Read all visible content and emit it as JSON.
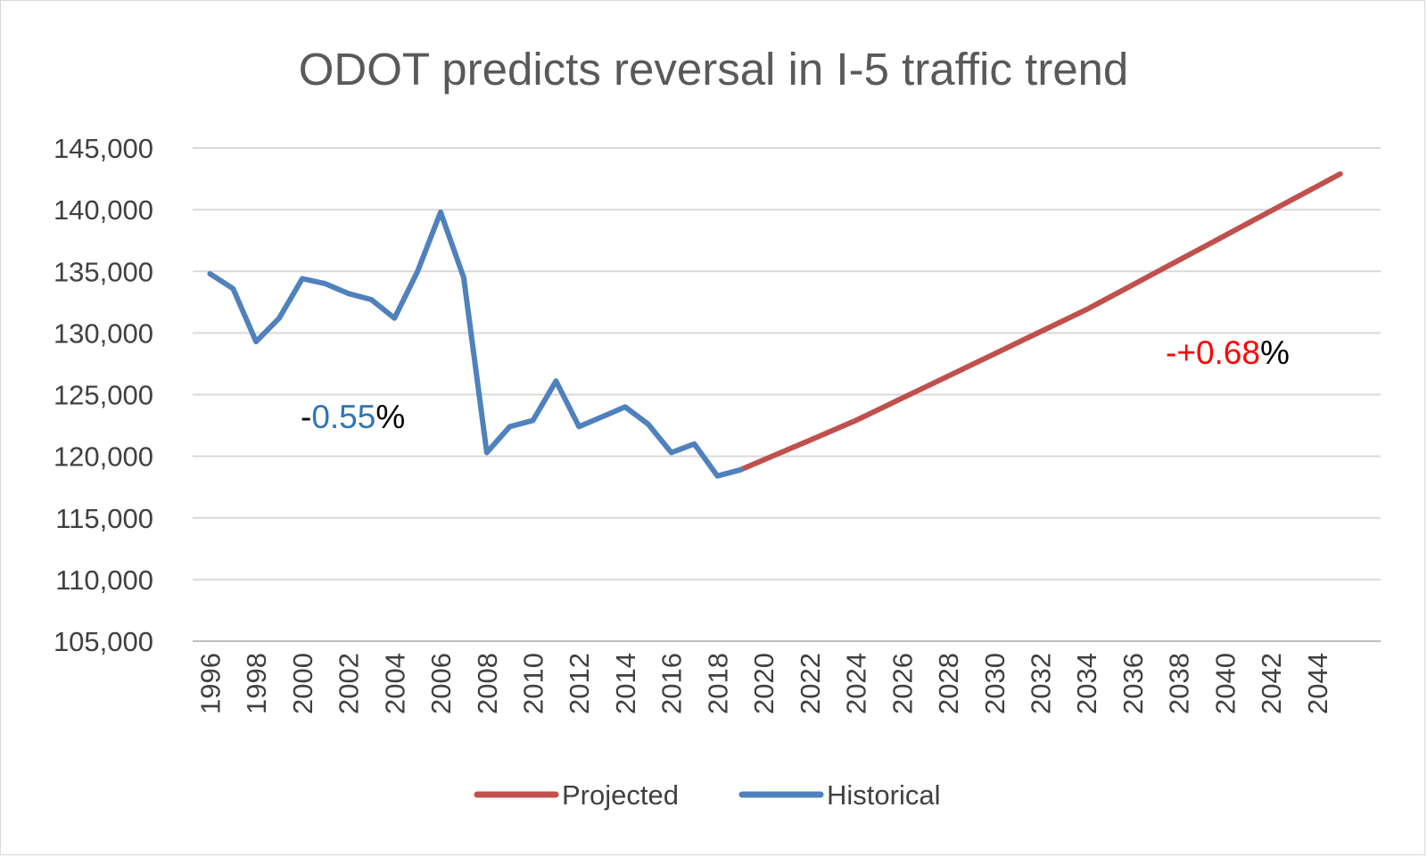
{
  "chart_data": {
    "type": "line",
    "title": "ODOT predicts  reversal in I-5 traffic trend",
    "xlabel": "",
    "ylabel": "",
    "xlim": [
      1996,
      2045
    ],
    "ylim": [
      105000,
      145000
    ],
    "y_ticks": [
      "105,000",
      "110,000",
      "115,000",
      "120,000",
      "125,000",
      "130,000",
      "135,000",
      "140,000",
      "145,000"
    ],
    "x_ticks": [
      "1996",
      "1998",
      "2000",
      "2002",
      "2004",
      "2006",
      "2008",
      "2010",
      "2012",
      "2014",
      "2016",
      "2018",
      "2020",
      "2022",
      "2024",
      "2026",
      "2028",
      "2030",
      "2032",
      "2034",
      "2036",
      "2038",
      "2040",
      "2042",
      "2044"
    ],
    "grid": true,
    "legend_position": "bottom",
    "series": [
      {
        "name": "Projected",
        "color": "#c0504d",
        "x": [
          2019,
          2020,
          2021,
          2022,
          2023,
          2024,
          2025,
          2026,
          2027,
          2028,
          2029,
          2030,
          2031,
          2032,
          2033,
          2034,
          2035,
          2036,
          2037,
          2038,
          2039,
          2040,
          2041,
          2042,
          2043,
          2044,
          2045
        ],
        "y": [
          118900,
          119700,
          120500,
          121300,
          122100,
          122900,
          123800,
          124700,
          125600,
          126500,
          127400,
          128300,
          129200,
          130100,
          131000,
          131900,
          132900,
          133900,
          134900,
          135900,
          136900,
          137900,
          138900,
          139900,
          140900,
          141900,
          142900
        ]
      },
      {
        "name": "Historical",
        "color": "#4f81bd",
        "x": [
          1996,
          1997,
          1998,
          1999,
          2000,
          2001,
          2002,
          2003,
          2004,
          2005,
          2006,
          2007,
          2008,
          2009,
          2010,
          2011,
          2012,
          2013,
          2014,
          2015,
          2016,
          2017,
          2018,
          2019
        ],
        "y": [
          134800,
          133600,
          129300,
          131200,
          134400,
          134000,
          133200,
          132700,
          131200,
          135000,
          139800,
          134500,
          120300,
          122400,
          122900,
          126100,
          122400,
          123200,
          124000,
          122600,
          120300,
          121000,
          118400,
          118900
        ]
      }
    ],
    "annotations": [
      {
        "prefix": "-",
        "value": "0.55",
        "suffix": "%",
        "value_color": "#2e75b6"
      },
      {
        "prefix": "-+",
        "value": "0.68",
        "suffix": "%",
        "value_color": "#ff0000"
      }
    ]
  }
}
